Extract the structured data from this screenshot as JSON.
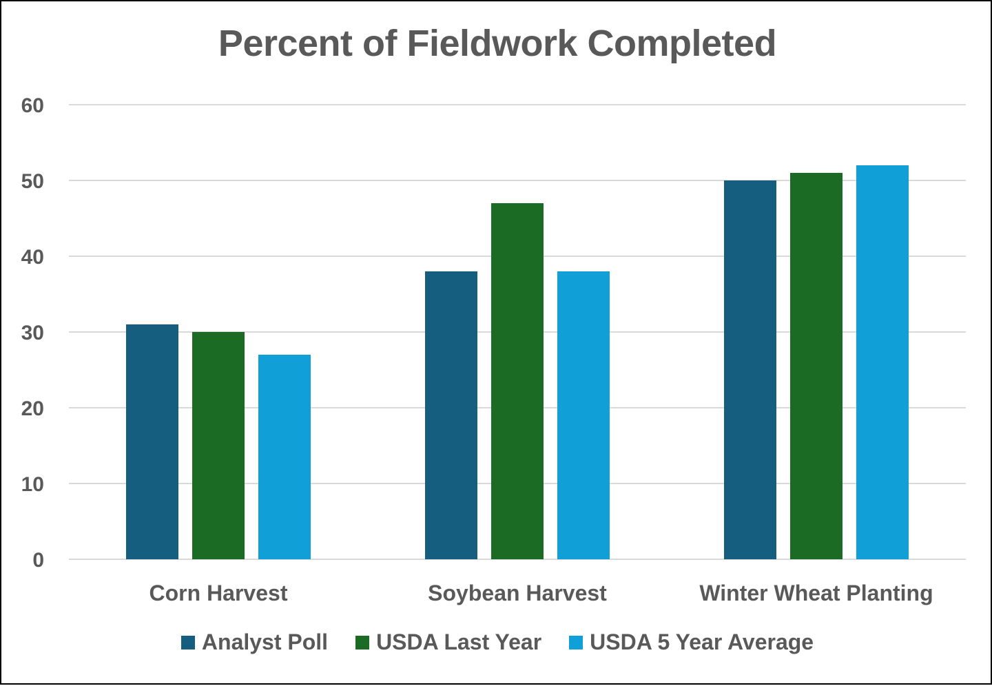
{
  "chart_data": {
    "type": "bar",
    "title": "Percent of Fieldwork Completed",
    "categories": [
      "Corn Harvest",
      "Soybean Harvest",
      "Winter Wheat Planting"
    ],
    "series": [
      {
        "name": "Analyst Poll",
        "color": "#165e80",
        "values": [
          31,
          38,
          50
        ]
      },
      {
        "name": "USDA Last Year",
        "color": "#1b6b24",
        "values": [
          30,
          47,
          51
        ]
      },
      {
        "name": "USDA 5 Year Average",
        "color": "#119fd8",
        "values": [
          27,
          38,
          52
        ]
      }
    ],
    "ylim": [
      0,
      60
    ],
    "yticks": [
      0,
      10,
      20,
      30,
      40,
      50,
      60
    ],
    "grid": true,
    "legend": "bottom"
  }
}
